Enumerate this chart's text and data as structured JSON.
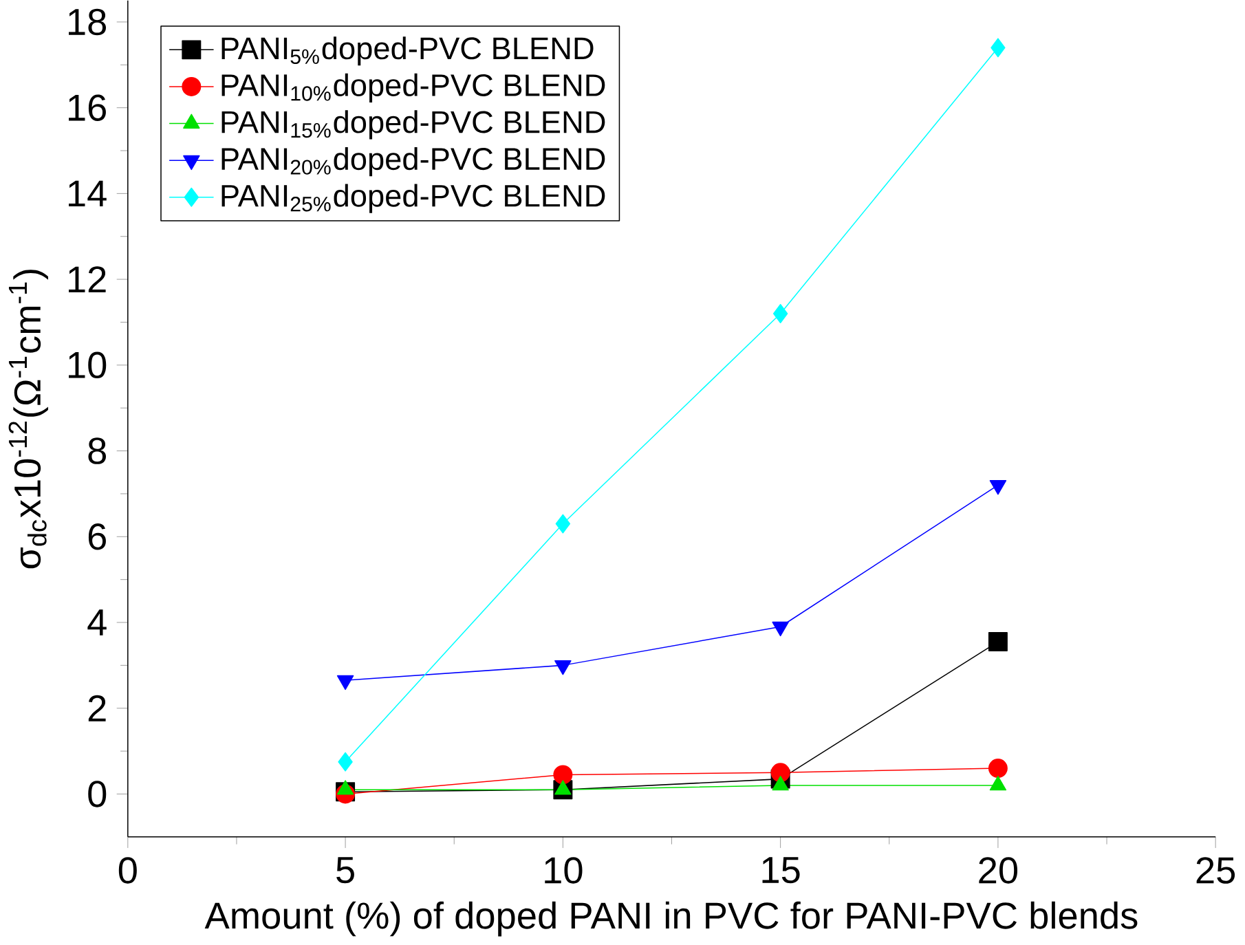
{
  "chart_data": {
    "type": "line",
    "xlabel": "Amount (%) of doped PANI in PVC for PANI-PVC blends",
    "ylabel": "σ$_{dc}$x10$^{-12}$(Ω$^{-1}$cm$^{-1}$)",
    "x": [
      5,
      10,
      15,
      20
    ],
    "series": [
      {
        "name": "PANI$_{5%}$doped-PVC BLEND",
        "color": "#000000",
        "marker": "square",
        "values": [
          0.05,
          0.1,
          0.35,
          3.55
        ]
      },
      {
        "name": "PANI$_{10%}$doped-PVC BLEND",
        "color": "#ff0000",
        "marker": "circle",
        "values": [
          0,
          0.45,
          0.5,
          0.6
        ]
      },
      {
        "name": "PANI$_{15%}$doped-PVC BLEND",
        "color": "#00e000",
        "marker": "triangle",
        "values": [
          0.1,
          0.1,
          0.2,
          0.2
        ]
      },
      {
        "name": "PANI$_{20%}$doped-PVC BLEND",
        "color": "#0000ff",
        "marker": "triangle-down",
        "values": [
          2.65,
          3.0,
          3.9,
          7.2
        ]
      },
      {
        "name": "PANI$_{25%}$doped-PVC BLEND",
        "color": "#00ffff",
        "marker": "diamond",
        "values": [
          0.75,
          6.3,
          11.2,
          17.4
        ]
      }
    ],
    "xlim": [
      0,
      25
    ],
    "xticks": [
      0,
      5,
      10,
      15,
      20,
      25
    ],
    "ylim": [
      -1,
      18.5
    ],
    "yticks": [
      0,
      2,
      4,
      6,
      8,
      10,
      12,
      14,
      16,
      18
    ],
    "legend": "top left",
    "line_style": "solid"
  }
}
